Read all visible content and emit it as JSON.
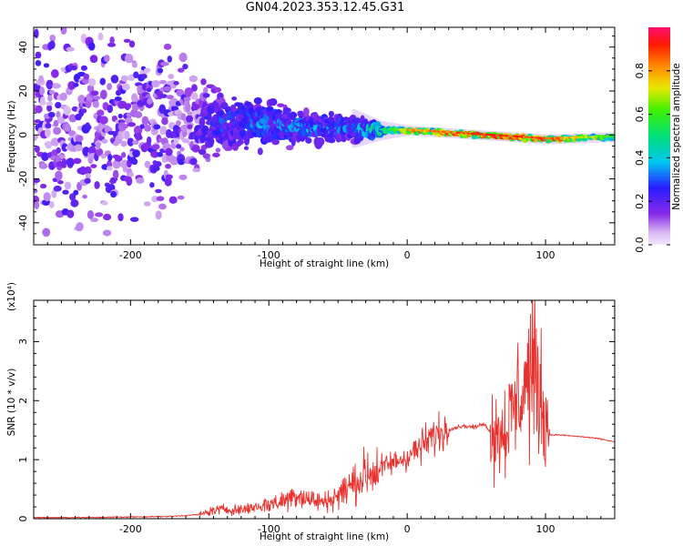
{
  "figure_title": "GN04.2023.353.12.45.G31",
  "colors": {
    "snr_line": "#e8302c",
    "axes": "#000000",
    "background": "#ffffff"
  },
  "chart_data": [
    {
      "type": "heatmap",
      "title": "GN04.2023.353.12.45.G31",
      "xlabel": "Height of straight line (km)",
      "ylabel": "Frequency (Hz)",
      "xlim": [
        -270,
        150
      ],
      "ylim": [
        -50,
        49
      ],
      "x_ticks": [
        -200,
        -100,
        0,
        100
      ],
      "y_ticks": [
        -40,
        -20,
        0,
        20,
        40
      ],
      "grid": false,
      "colorbar": {
        "label": "Normalized spectral amplitude",
        "range": [
          0,
          1
        ],
        "ticks": [
          0.0,
          0.2,
          0.4,
          0.6,
          0.8
        ],
        "colormap": "rainbow (white-lavender → purple → blue → cyan → green → yellow → orange → red → magenta)"
      },
      "ridge_profile": [
        {
          "x": -270,
          "center_freq": 5,
          "spread_hz": 49,
          "peak_amp": 0.15
        },
        {
          "x": -200,
          "center_freq": 5,
          "spread_hz": 49,
          "peak_amp": 0.18
        },
        {
          "x": -160,
          "center_freq": 5,
          "spread_hz": 30,
          "peak_amp": 0.22
        },
        {
          "x": -130,
          "center_freq": 6,
          "spread_hz": 20,
          "peak_amp": 0.3
        },
        {
          "x": -100,
          "center_freq": 5,
          "spread_hz": 14,
          "peak_amp": 0.35
        },
        {
          "x": -70,
          "center_freq": 3,
          "spread_hz": 10,
          "peak_amp": 0.35
        },
        {
          "x": -40,
          "center_freq": 3,
          "spread_hz": 8,
          "peak_amp": 0.35
        },
        {
          "x": -20,
          "center_freq": 2,
          "spread_hz": 4,
          "peak_amp": 0.5
        },
        {
          "x": 0,
          "center_freq": 2,
          "spread_hz": 2,
          "peak_amp": 0.85
        },
        {
          "x": 50,
          "center_freq": 0,
          "spread_hz": 2,
          "peak_amp": 0.95
        },
        {
          "x": 100,
          "center_freq": -2,
          "spread_hz": 2,
          "peak_amp": 0.95
        },
        {
          "x": 150,
          "center_freq": -1,
          "spread_hz": 2,
          "peak_amp": 0.6
        }
      ]
    },
    {
      "type": "line",
      "xlabel": "Height of straight line (km)",
      "ylabel": "SNR (10 * v/v)",
      "y_multiplier": "(x10⁴)",
      "xlim": [
        -270,
        150
      ],
      "ylim": [
        0,
        3.7
      ],
      "x_ticks": [
        -200,
        -100,
        0,
        100
      ],
      "y_ticks": [
        0,
        1,
        2,
        3
      ],
      "grid": false,
      "series": [
        {
          "x": [
            -270,
            -230,
            -200,
            -170,
            -150,
            -140,
            -130,
            -120,
            -110,
            -100,
            -90,
            -80,
            -70,
            -60,
            -50,
            -40,
            -30,
            -20,
            -10,
            0,
            10,
            20,
            30,
            40,
            50,
            55,
            60,
            65,
            70,
            75,
            80,
            85,
            90,
            95,
            100,
            103,
            110,
            120,
            130,
            140,
            150
          ],
          "y": [
            0.02,
            0.02,
            0.03,
            0.04,
            0.07,
            0.14,
            0.16,
            0.15,
            0.2,
            0.24,
            0.3,
            0.42,
            0.32,
            0.28,
            0.4,
            0.58,
            0.75,
            0.85,
            0.95,
            1.05,
            1.22,
            1.42,
            1.52,
            1.57,
            1.55,
            1.62,
            1.48,
            1.45,
            1.55,
            1.7,
            2.0,
            2.3,
            2.5,
            2.2,
            1.7,
            1.42,
            1.42,
            1.4,
            1.38,
            1.35,
            1.3
          ]
        }
      ]
    }
  ]
}
